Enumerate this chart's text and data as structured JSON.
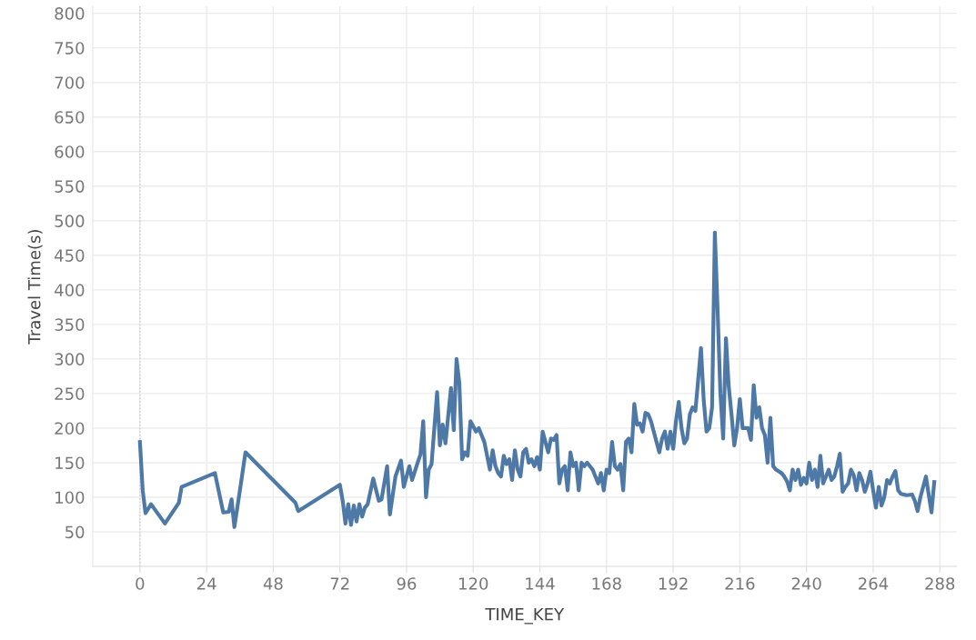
{
  "chart_data": {
    "type": "line",
    "xlabel": "TIME_KEY",
    "ylabel": "Travel Time(s)",
    "xlim": [
      -17,
      294
    ],
    "ylim": [
      0,
      810
    ],
    "xticks": [
      0,
      24,
      48,
      72,
      96,
      120,
      144,
      168,
      192,
      216,
      240,
      264,
      288
    ],
    "yticks": [
      50,
      100,
      150,
      200,
      250,
      300,
      350,
      400,
      450,
      500,
      550,
      600,
      650,
      700,
      750,
      800
    ],
    "grid": true,
    "ref_lines": [
      {
        "axis": "x",
        "value": 0,
        "color": "#cccccc",
        "line_style": "dotted"
      }
    ],
    "marker": "none",
    "line_style": "solid",
    "series": [
      {
        "color": "#4e79a7",
        "x": [
          0,
          1,
          2,
          4,
          9,
          14,
          15,
          27,
          30,
          32,
          33,
          34,
          36,
          38,
          56,
          57,
          72,
          73,
          74,
          75,
          76,
          77,
          78,
          79,
          80,
          81,
          82,
          84,
          86,
          87,
          89,
          90,
          92,
          94,
          95,
          97,
          98,
          100,
          101,
          102,
          103,
          104,
          105,
          107,
          108,
          109,
          110,
          112,
          113,
          114,
          115,
          116,
          117,
          118,
          119,
          121,
          122,
          124,
          126,
          127,
          128,
          129,
          130,
          131,
          132,
          133,
          134,
          135,
          136,
          137,
          138,
          139,
          140,
          141,
          142,
          143,
          144,
          145,
          147,
          148,
          149,
          150,
          151,
          152,
          153,
          154,
          155,
          156,
          157,
          158,
          159,
          160,
          161,
          162,
          163,
          164,
          165,
          166,
          167,
          168,
          169,
          170,
          171,
          172,
          173,
          174,
          175,
          176,
          177,
          178,
          179,
          180,
          181,
          182,
          183,
          184,
          185,
          186,
          187,
          188,
          189,
          190,
          191,
          192,
          193,
          194,
          195,
          196,
          197,
          198,
          199,
          200,
          201,
          202,
          203,
          204,
          205,
          206,
          207,
          208,
          209,
          210,
          211,
          212,
          213,
          214,
          215,
          216,
          217,
          218,
          219,
          220,
          221,
          222,
          223,
          224,
          225,
          226,
          227,
          228,
          229,
          231,
          232,
          233,
          234,
          235,
          236,
          237,
          238,
          239,
          240,
          241,
          242,
          243,
          244,
          245,
          246,
          247,
          248,
          249,
          250,
          251,
          252,
          253,
          254,
          255,
          256,
          257,
          258,
          259,
          260,
          261,
          262,
          263,
          264,
          265,
          266,
          267,
          268,
          269,
          270,
          271,
          272,
          273,
          274,
          276,
          278,
          279,
          280,
          281,
          283,
          285,
          286
        ],
        "values": [
          180,
          110,
          77,
          90,
          62,
          92,
          115,
          135,
          78,
          79,
          97,
          57,
          110,
          165,
          92,
          80,
          118,
          95,
          62,
          90,
          60,
          88,
          65,
          90,
          72,
          85,
          90,
          127,
          95,
          97,
          145,
          75,
          130,
          153,
          115,
          145,
          125,
          150,
          162,
          210,
          100,
          140,
          148,
          252,
          175,
          205,
          178,
          258,
          197,
          300,
          265,
          155,
          165,
          160,
          210,
          195,
          200,
          180,
          140,
          168,
          145,
          135,
          130,
          160,
          148,
          155,
          125,
          168,
          140,
          130,
          165,
          170,
          150,
          155,
          145,
          158,
          140,
          195,
          165,
          185,
          183,
          190,
          120,
          140,
          145,
          110,
          165,
          145,
          150,
          110,
          150,
          145,
          150,
          145,
          140,
          130,
          120,
          135,
          110,
          140,
          135,
          180,
          145,
          140,
          148,
          110,
          180,
          185,
          165,
          235,
          205,
          207,
          195,
          222,
          220,
          210,
          195,
          180,
          165,
          185,
          195,
          170,
          195,
          170,
          210,
          238,
          200,
          178,
          185,
          220,
          230,
          225,
          270,
          316,
          240,
          195,
          200,
          230,
          483,
          370,
          250,
          185,
          330,
          260,
          220,
          175,
          200,
          242,
          200,
          200,
          200,
          183,
          262,
          215,
          230,
          200,
          190,
          150,
          215,
          145,
          140,
          135,
          130,
          123,
          110,
          140,
          125,
          140,
          118,
          128,
          120,
          150,
          125,
          140,
          115,
          160,
          120,
          130,
          140,
          125,
          130,
          145,
          163,
          108,
          115,
          120,
          140,
          132,
          110,
          135,
          125,
          108,
          120,
          137,
          110,
          85,
          115,
          88,
          100,
          125,
          120,
          130,
          138,
          110,
          105,
          103,
          104,
          95,
          80,
          100,
          130,
          78,
          122
        ]
      }
    ]
  }
}
